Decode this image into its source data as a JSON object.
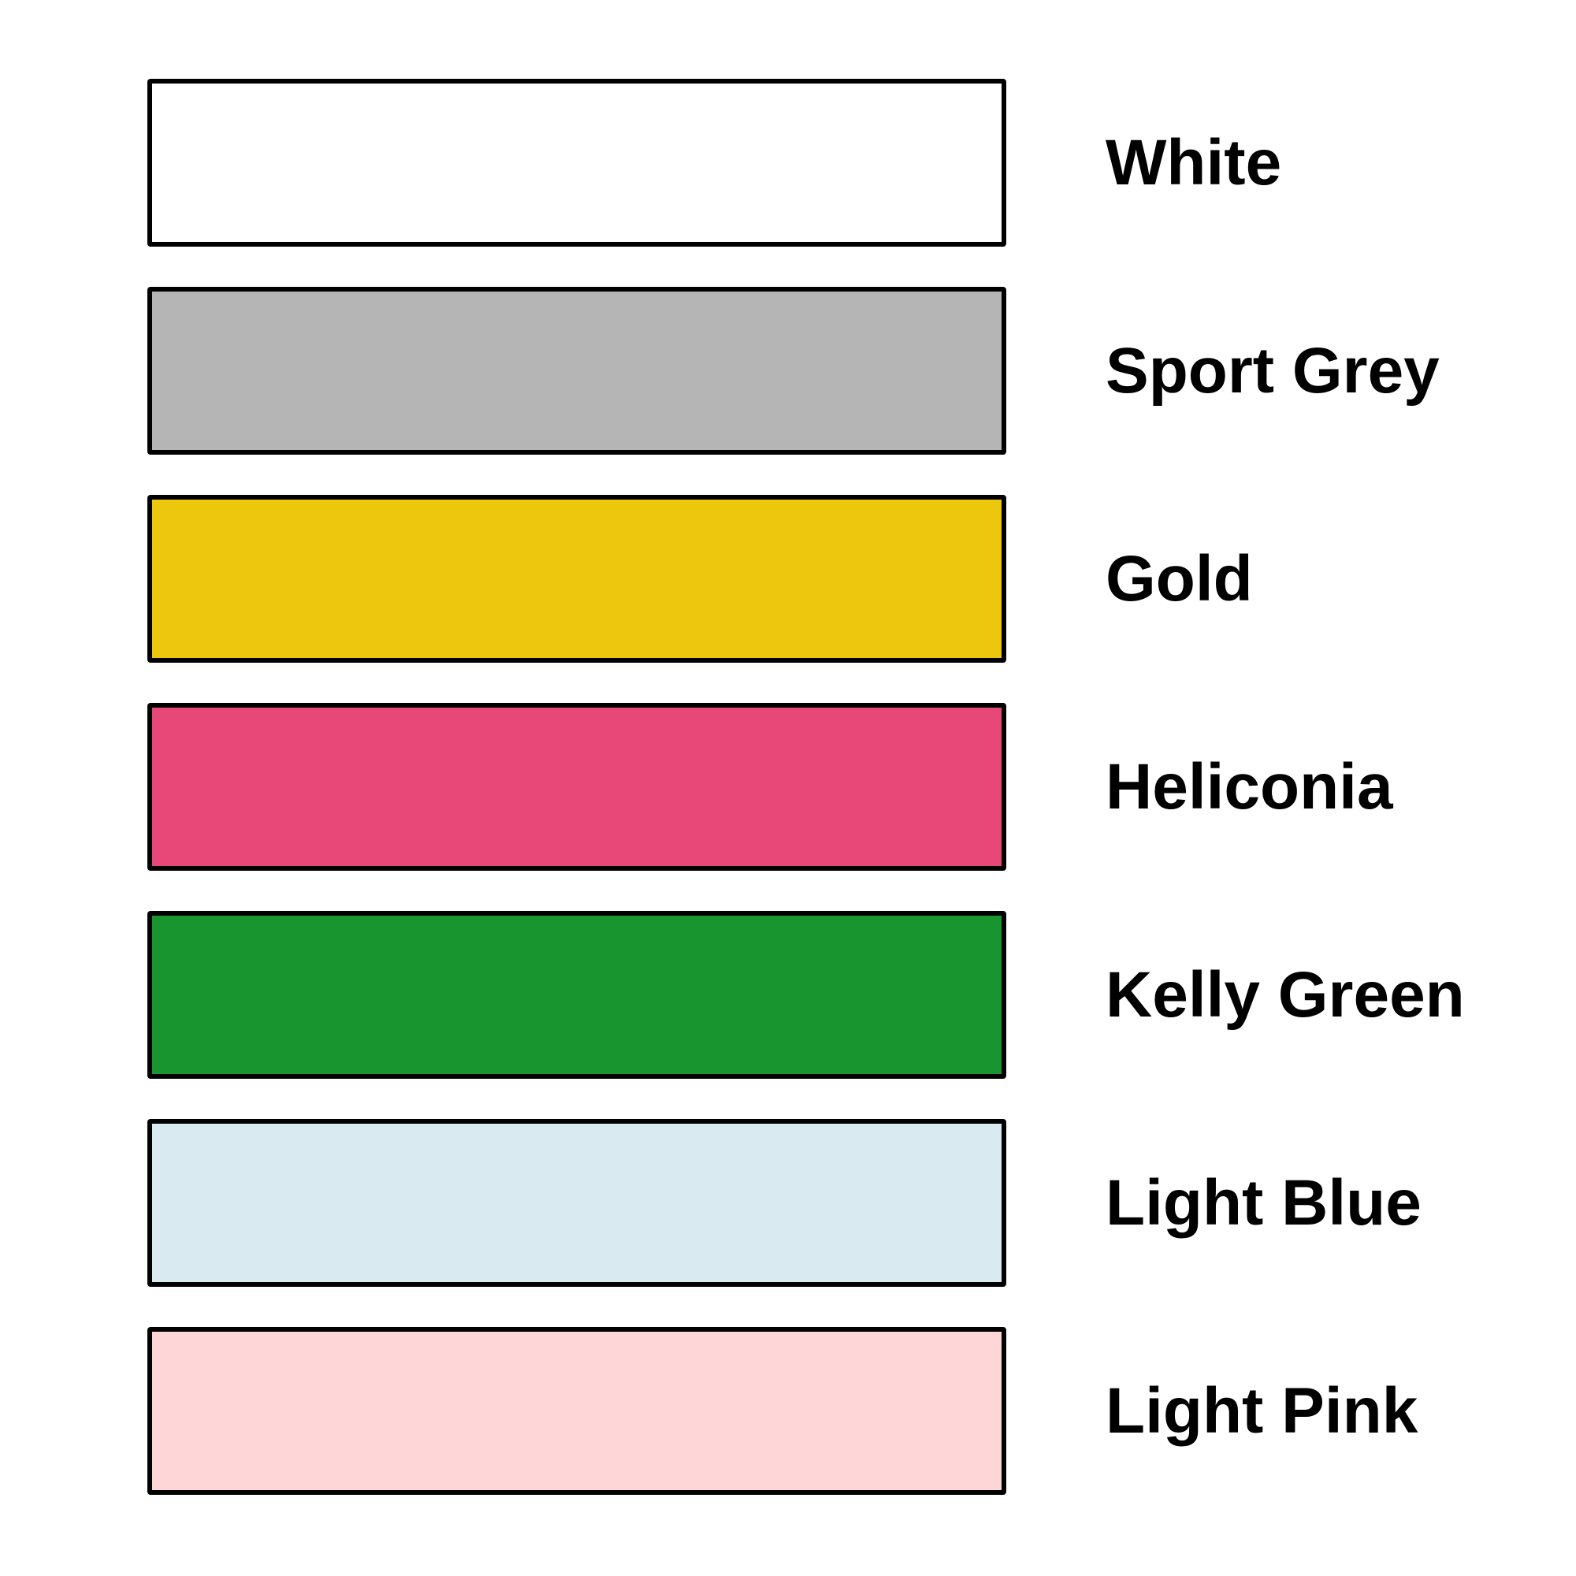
{
  "page": {
    "background_color": "#FFFFFF",
    "swatch_border_color": "#000000",
    "text_color": "#000000"
  },
  "swatches": [
    {
      "label": "White",
      "color": "#FFFFFF"
    },
    {
      "label": "Sport Grey",
      "color": "#B5B5B5"
    },
    {
      "label": "Gold",
      "color": "#EDC70D"
    },
    {
      "label": "Heliconia",
      "color": "#E84878"
    },
    {
      "label": "Kelly Green",
      "color": "#18952F"
    },
    {
      "label": "Light Blue",
      "color": "#DAEAF1"
    },
    {
      "label": "Light Pink",
      "color": "#FFD6D7"
    }
  ]
}
